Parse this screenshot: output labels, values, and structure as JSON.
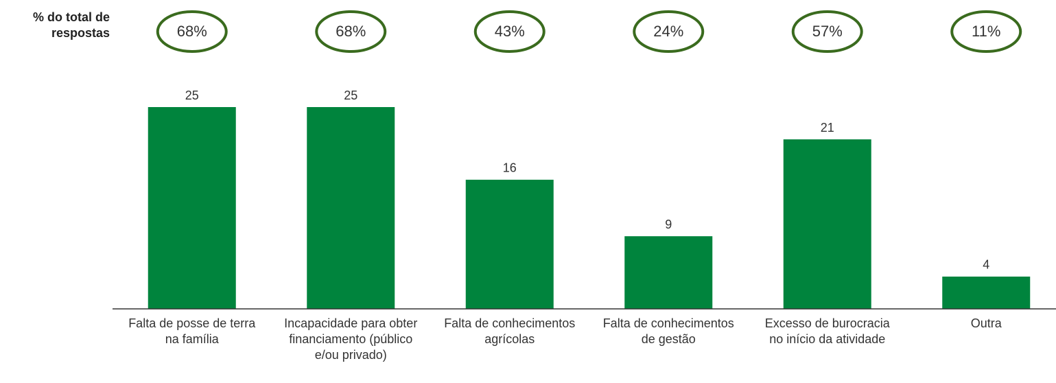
{
  "chart_data": {
    "type": "bar",
    "side_label": "% do total de respostas",
    "categories": [
      "Falta de posse de terra na família",
      "Incapacidade para obter financiamento (público e/ou privado)",
      "Falta de conhecimentos agrícolas",
      "Falta de conhecimentos de gestão",
      "Excesso de burocracia no início da atividade",
      "Outra"
    ],
    "values": [
      25,
      25,
      16,
      9,
      21,
      4
    ],
    "shares": [
      {
        "value": 68,
        "label": "68%"
      },
      {
        "value": 68,
        "label": "68%"
      },
      {
        "value": 43,
        "label": "43%"
      },
      {
        "value": 24,
        "label": "24%"
      },
      {
        "value": 57,
        "label": "57%"
      },
      {
        "value": 11,
        "label": "11%"
      }
    ],
    "color": "#00843d",
    "share_color": "#3a6b1e",
    "ylim": [
      0,
      25
    ]
  }
}
